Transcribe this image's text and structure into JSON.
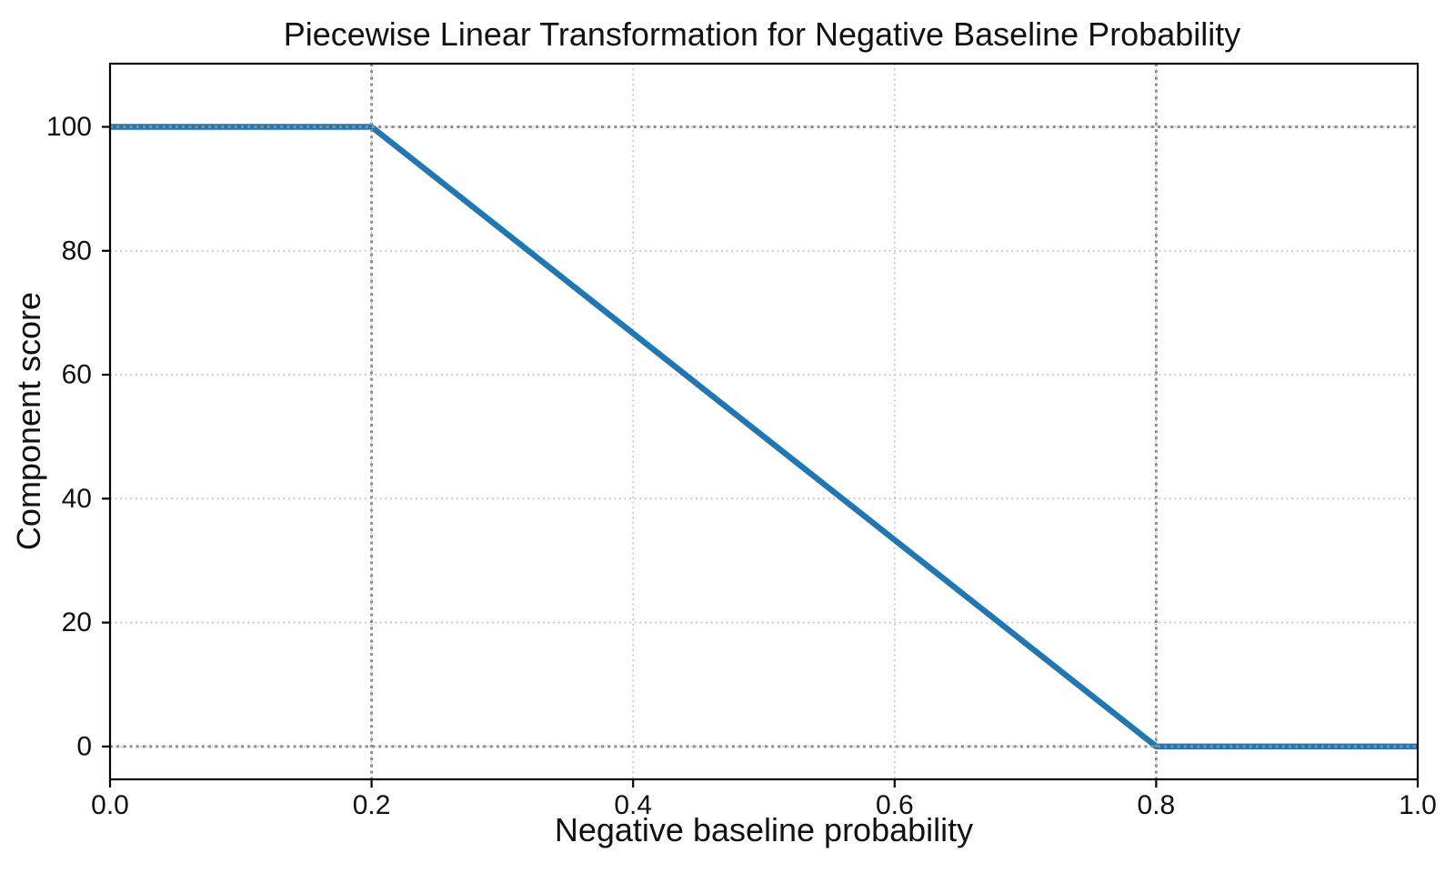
{
  "chart_data": {
    "type": "line",
    "title": "Piecewise Linear Transformation for Negative Baseline Probability",
    "xlabel": "Negative baseline probability",
    "ylabel": "Component score",
    "xlim": [
      0.0,
      1.0
    ],
    "ylim": [
      -5.3,
      110.2
    ],
    "x_ticks": [
      0.0,
      0.2,
      0.4,
      0.6,
      0.8,
      1.0
    ],
    "x_tick_labels": [
      "0.0",
      "0.2",
      "0.4",
      "0.6",
      "0.8",
      "1.0"
    ],
    "y_ticks": [
      0,
      20,
      40,
      60,
      80,
      100
    ],
    "y_tick_labels": [
      "0",
      "20",
      "40",
      "60",
      "80",
      "100"
    ],
    "grid": true,
    "grid_style": "dotted",
    "legend": "none",
    "series": [
      {
        "color": "#1f77b4",
        "points": [
          [
            0.0,
            100
          ],
          [
            0.2,
            100
          ],
          [
            0.8,
            0
          ],
          [
            1.0,
            0
          ]
        ]
      }
    ],
    "reference_lines": {
      "vertical": [
        0.2,
        0.8
      ],
      "horizontal": [
        0,
        100
      ],
      "color": "#8f8f8f",
      "style": "dotted"
    }
  },
  "colors": {
    "line": "#1f77b4",
    "grid": "#bdbdbd",
    "reference": "#8f8f8f",
    "text": "#111111",
    "spine": "#000000",
    "background": "#ffffff"
  }
}
